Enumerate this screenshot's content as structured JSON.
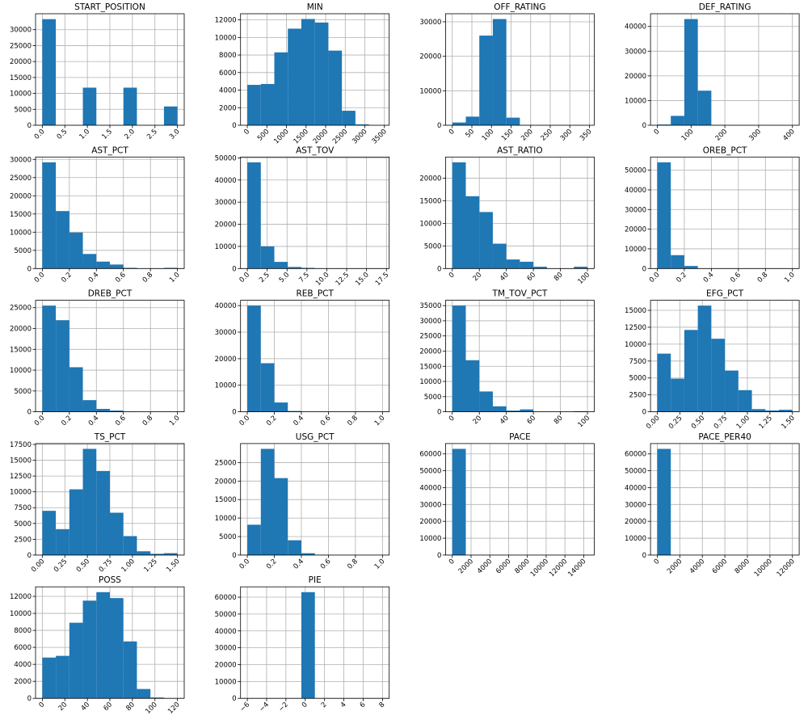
{
  "chart_data": [
    {
      "type": "histogram",
      "title": "START_POSITION",
      "color": "#1f77b4",
      "grid": true,
      "bins": [
        0,
        0.3,
        0.6,
        0.9,
        1.2,
        1.5,
        1.8,
        2.1,
        2.4,
        2.7,
        3
      ],
      "values": [
        33300,
        0,
        0,
        11800,
        0,
        0,
        11800,
        0,
        0,
        5900
      ],
      "xlim": [
        -0.15,
        3.15
      ],
      "ylim": [
        0,
        35000
      ],
      "xticks": [
        {
          "value": 0,
          "label": "0.0"
        },
        0.5,
        {
          "value": 1,
          "label": "1.0"
        },
        1.5,
        {
          "value": 2,
          "label": "2.0"
        },
        2.5,
        {
          "value": 3,
          "label": "3.0"
        }
      ],
      "yticks": [
        0,
        5000,
        10000,
        15000,
        20000,
        25000,
        30000
      ]
    },
    {
      "type": "histogram",
      "title": "MIN",
      "color": "#1f77b4",
      "grid": true,
      "bins": [
        0,
        345,
        690,
        1035,
        1380,
        1725,
        2070,
        2415,
        2760,
        3105,
        3450
      ],
      "values": [
        4600,
        4700,
        8300,
        11000,
        12100,
        11700,
        8500,
        1650,
        100,
        10
      ],
      "xlim": [
        -172.5,
        3622.5
      ],
      "ylim": [
        0,
        12700
      ],
      "xticks": [
        0,
        500,
        1000,
        1500,
        2000,
        2500,
        3000,
        3500
      ],
      "yticks": [
        0,
        2000,
        4000,
        6000,
        8000,
        10000,
        12000
      ]
    },
    {
      "type": "histogram",
      "title": "OFF_RATING",
      "color": "#1f77b4",
      "grid": true,
      "bins": [
        0,
        34.5,
        69,
        103.5,
        138,
        172.5,
        207,
        241.5,
        276,
        310.5,
        345
      ],
      "values": [
        800,
        2500,
        26000,
        30800,
        2200,
        50,
        10,
        5,
        2,
        1
      ],
      "xlim": [
        -17.25,
        362.25
      ],
      "ylim": [
        0,
        32340
      ],
      "xticks": [
        0,
        50,
        100,
        150,
        200,
        250,
        300,
        350
      ],
      "yticks": [
        0,
        10000,
        20000,
        30000
      ]
    },
    {
      "type": "histogram",
      "title": "DEF_RATING",
      "color": "#1f77b4",
      "grid": true,
      "bins": [
        0,
        40,
        80,
        120,
        160,
        200,
        240,
        280,
        320,
        360,
        400
      ],
      "values": [
        300,
        3800,
        43000,
        14000,
        100,
        10,
        5,
        2,
        1,
        1
      ],
      "xlim": [
        -20,
        420
      ],
      "ylim": [
        0,
        45150
      ],
      "xticks": [
        0,
        100,
        200,
        300,
        400
      ],
      "yticks": [
        0,
        10000,
        20000,
        30000,
        40000
      ]
    },
    {
      "type": "histogram",
      "title": "AST_PCT",
      "color": "#1f77b4",
      "grid": true,
      "bins": [
        0,
        0.1,
        0.2,
        0.3,
        0.4,
        0.5,
        0.6,
        0.7,
        0.8,
        0.9,
        1
      ],
      "values": [
        29200,
        15800,
        9900,
        4000,
        1900,
        1100,
        200,
        50,
        20,
        200
      ],
      "xlim": [
        -0.05,
        1.05
      ],
      "ylim": [
        0,
        30660
      ],
      "xticks": [
        {
          "value": 0,
          "label": "0.0"
        },
        0.2,
        0.4,
        0.6,
        0.8,
        {
          "value": 1,
          "label": "1.0"
        }
      ],
      "yticks": [
        0,
        5000,
        10000,
        15000,
        20000,
        25000,
        30000
      ]
    },
    {
      "type": "histogram",
      "title": "AST_TOV",
      "color": "#1f77b4",
      "grid": true,
      "bins": [
        0,
        1.7,
        3.4,
        5.1,
        6.8,
        8.5,
        10.2,
        11.9,
        13.6,
        15.3,
        17
      ],
      "values": [
        48000,
        10000,
        3000,
        700,
        300,
        100,
        20,
        10,
        5,
        2
      ],
      "xlim": [
        -0.85,
        17.85
      ],
      "ylim": [
        0,
        50400
      ],
      "xticks": [
        {
          "value": 0,
          "label": "0.0"
        },
        2.5,
        {
          "value": 5,
          "label": "5.0"
        },
        7.5,
        {
          "value": 10,
          "label": "10.0"
        },
        12.5,
        {
          "value": 15,
          "label": "15.0"
        },
        17.5
      ],
      "yticks": [
        0,
        10000,
        20000,
        30000,
        40000,
        50000
      ]
    },
    {
      "type": "histogram",
      "title": "AST_RATIO",
      "color": "#1f77b4",
      "grid": true,
      "bins": [
        0,
        10,
        20,
        30,
        40,
        50,
        60,
        70,
        80,
        90,
        100
      ],
      "values": [
        23500,
        16000,
        12500,
        5500,
        2000,
        1500,
        400,
        50,
        20,
        400
      ],
      "xlim": [
        -5,
        105
      ],
      "ylim": [
        0,
        24675
      ],
      "xticks": [
        0,
        20,
        40,
        60,
        80,
        100
      ],
      "yticks": [
        0,
        5000,
        10000,
        15000,
        20000
      ]
    },
    {
      "type": "histogram",
      "title": "OREB_PCT",
      "color": "#1f77b4",
      "grid": true,
      "bins": [
        0,
        0.1,
        0.2,
        0.3,
        0.4,
        0.5,
        0.6,
        0.7,
        0.8,
        0.9,
        1
      ],
      "values": [
        54000,
        6800,
        1300,
        100,
        20,
        10,
        5,
        2,
        1,
        10
      ],
      "xlim": [
        -0.05,
        1.05
      ],
      "ylim": [
        0,
        56700
      ],
      "xticks": [
        {
          "value": 0,
          "label": "0.0"
        },
        0.2,
        0.4,
        0.6,
        0.8,
        {
          "value": 1,
          "label": "1.0"
        }
      ],
      "yticks": [
        0,
        10000,
        20000,
        30000,
        40000,
        50000
      ]
    },
    {
      "type": "histogram",
      "title": "DREB_PCT",
      "color": "#1f77b4",
      "grid": true,
      "bins": [
        0,
        0.1,
        0.2,
        0.3,
        0.4,
        0.5,
        0.6,
        0.7,
        0.8,
        0.9,
        1
      ],
      "values": [
        25500,
        22000,
        10700,
        2800,
        700,
        300,
        50,
        10,
        5,
        20
      ],
      "xlim": [
        -0.05,
        1.05
      ],
      "ylim": [
        0,
        26775
      ],
      "xticks": [
        {
          "value": 0,
          "label": "0.0"
        },
        0.2,
        0.4,
        0.6,
        0.8,
        {
          "value": 1,
          "label": "1.0"
        }
      ],
      "yticks": [
        0,
        5000,
        10000,
        15000,
        20000,
        25000
      ]
    },
    {
      "type": "histogram",
      "title": "REB_PCT",
      "color": "#1f77b4",
      "grid": true,
      "bins": [
        0,
        0.1,
        0.2,
        0.3,
        0.4,
        0.5,
        0.6,
        0.7,
        0.8,
        0.9,
        1
      ],
      "values": [
        40000,
        18300,
        3500,
        300,
        20,
        5,
        2,
        1,
        1,
        5
      ],
      "xlim": [
        -0.05,
        1.05
      ],
      "ylim": [
        0,
        42000
      ],
      "xticks": [
        {
          "value": 0,
          "label": "0.0"
        },
        0.2,
        0.4,
        0.6,
        0.8,
        {
          "value": 1,
          "label": "1.0"
        }
      ],
      "yticks": [
        0,
        10000,
        20000,
        30000,
        40000
      ]
    },
    {
      "type": "histogram",
      "title": "TM_TOV_PCT",
      "color": "#1f77b4",
      "grid": true,
      "bins": [
        0,
        10,
        20,
        30,
        40,
        50,
        60,
        70,
        80,
        90,
        100
      ],
      "values": [
        35000,
        17000,
        6700,
        1800,
        400,
        800,
        50,
        20,
        10,
        200
      ],
      "xlim": [
        -5,
        105
      ],
      "ylim": [
        0,
        36750
      ],
      "xticks": [
        0,
        20,
        40,
        60,
        80,
        100
      ],
      "yticks": [
        0,
        5000,
        10000,
        15000,
        20000,
        25000,
        30000,
        35000
      ]
    },
    {
      "type": "histogram",
      "title": "EFG_PCT",
      "color": "#1f77b4",
      "grid": true,
      "bins": [
        0,
        0.15,
        0.3,
        0.45,
        0.6,
        0.75,
        0.9,
        1.05,
        1.2,
        1.35,
        1.5
      ],
      "values": [
        8600,
        4900,
        12100,
        15700,
        10800,
        6100,
        3200,
        400,
        200,
        300
      ],
      "xlim": [
        -0.075,
        1.575
      ],
      "ylim": [
        0,
        16485
      ],
      "xticks": [
        {
          "value": 0,
          "label": "0.00"
        },
        0.25,
        {
          "value": 0.5,
          "label": "0.50"
        },
        0.75,
        {
          "value": 1,
          "label": "1.00"
        },
        1.25,
        {
          "value": 1.5,
          "label": "1.50"
        }
      ],
      "yticks": [
        0,
        2500,
        5000,
        7500,
        10000,
        12500,
        15000
      ]
    },
    {
      "type": "histogram",
      "title": "TS_PCT",
      "color": "#1f77b4",
      "grid": true,
      "bins": [
        0,
        0.15,
        0.3,
        0.45,
        0.6,
        0.75,
        0.9,
        1.05,
        1.2,
        1.35,
        1.5
      ],
      "values": [
        7000,
        4100,
        10400,
        16800,
        13300,
        6700,
        3000,
        600,
        200,
        300
      ],
      "xlim": [
        -0.075,
        1.575
      ],
      "ylim": [
        0,
        17640
      ],
      "xticks": [
        {
          "value": 0,
          "label": "0.00"
        },
        0.25,
        {
          "value": 0.5,
          "label": "0.50"
        },
        0.75,
        {
          "value": 1,
          "label": "1.00"
        },
        1.25,
        {
          "value": 1.5,
          "label": "1.50"
        }
      ],
      "yticks": [
        0,
        2500,
        5000,
        7500,
        10000,
        12500,
        15000,
        17500
      ]
    },
    {
      "type": "histogram",
      "title": "USG_PCT",
      "color": "#1f77b4",
      "grid": true,
      "bins": [
        0,
        0.1,
        0.2,
        0.3,
        0.4,
        0.5,
        0.6,
        0.7,
        0.8,
        0.9,
        1
      ],
      "values": [
        8200,
        28700,
        20800,
        4000,
        500,
        100,
        20,
        10,
        5,
        10
      ],
      "xlim": [
        -0.05,
        1.05
      ],
      "ylim": [
        0,
        30135
      ],
      "xticks": [
        {
          "value": 0,
          "label": "0.0"
        },
        0.2,
        0.4,
        0.6,
        0.8,
        {
          "value": 1,
          "label": "1.0"
        }
      ],
      "yticks": [
        0,
        5000,
        10000,
        15000,
        20000,
        25000
      ]
    },
    {
      "type": "histogram",
      "title": "PACE",
      "color": "#1f77b4",
      "grid": true,
      "bins": [
        0,
        1440,
        2880,
        4320,
        5760,
        7200,
        8640,
        10080,
        11520,
        12960,
        14400
      ],
      "values": [
        62999,
        0,
        0,
        0,
        0,
        0,
        0,
        0,
        0,
        1
      ],
      "xlim": [
        -720,
        15120
      ],
      "ylim": [
        0,
        66150
      ],
      "xticks": [
        0,
        2000,
        4000,
        6000,
        8000,
        10000,
        12000,
        14000
      ],
      "yticks": [
        0,
        10000,
        20000,
        30000,
        40000,
        50000,
        60000
      ]
    },
    {
      "type": "histogram",
      "title": "PACE_PER40",
      "color": "#1f77b4",
      "grid": true,
      "bins": [
        0,
        1200,
        2400,
        3600,
        4800,
        6000,
        7200,
        8400,
        9600,
        10800,
        12000
      ],
      "values": [
        62999,
        0,
        0,
        0,
        0,
        0,
        0,
        0,
        0,
        1
      ],
      "xlim": [
        -600,
        12600
      ],
      "ylim": [
        0,
        66150
      ],
      "xticks": [
        0,
        2000,
        4000,
        6000,
        8000,
        10000,
        12000
      ],
      "yticks": [
        0,
        10000,
        20000,
        30000,
        40000,
        50000,
        60000
      ]
    },
    {
      "type": "histogram",
      "title": "POSS",
      "color": "#1f77b4",
      "grid": true,
      "bins": [
        0,
        12,
        24,
        36,
        48,
        60,
        72,
        84,
        96,
        108,
        120
      ],
      "values": [
        4800,
        5000,
        8900,
        11500,
        12500,
        11800,
        6700,
        1100,
        100,
        10
      ],
      "xlim": [
        -6,
        126
      ],
      "ylim": [
        0,
        13125
      ],
      "xticks": [
        0,
        20,
        40,
        60,
        80,
        100,
        120
      ],
      "yticks": [
        0,
        2000,
        4000,
        6000,
        8000,
        10000,
        12000
      ]
    },
    {
      "type": "histogram",
      "title": "PIE",
      "color": "#1f77b4",
      "grid": true,
      "bins": [
        -6,
        -4.6,
        -3.2,
        -1.8,
        -0.4,
        1,
        2.4,
        3.8,
        5.2,
        6.6,
        8
      ],
      "values": [
        1,
        0,
        0,
        0,
        62999,
        0,
        0,
        0,
        0,
        1
      ],
      "xlim": [
        -6.7,
        8.7
      ],
      "ylim": [
        0,
        66150
      ],
      "xticks": [
        {
          "value": -6,
          "label": "−6"
        },
        {
          "value": -4,
          "label": "−4"
        },
        {
          "value": -2,
          "label": "−2"
        },
        0,
        2,
        4,
        6,
        8
      ],
      "yticks": [
        0,
        10000,
        20000,
        30000,
        40000,
        50000,
        60000
      ]
    }
  ]
}
